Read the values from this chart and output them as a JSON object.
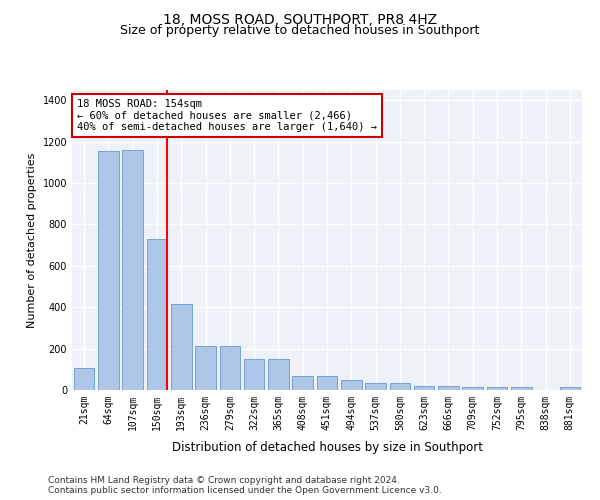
{
  "title": "18, MOSS ROAD, SOUTHPORT, PR8 4HZ",
  "subtitle": "Size of property relative to detached houses in Southport",
  "xlabel": "Distribution of detached houses by size in Southport",
  "ylabel": "Number of detached properties",
  "categories": [
    "21sqm",
    "64sqm",
    "107sqm",
    "150sqm",
    "193sqm",
    "236sqm",
    "279sqm",
    "322sqm",
    "365sqm",
    "408sqm",
    "451sqm",
    "494sqm",
    "537sqm",
    "580sqm",
    "623sqm",
    "666sqm",
    "709sqm",
    "752sqm",
    "795sqm",
    "838sqm",
    "881sqm"
  ],
  "values": [
    105,
    1155,
    1160,
    730,
    415,
    215,
    215,
    150,
    150,
    70,
    70,
    47,
    32,
    32,
    20,
    20,
    15,
    15,
    15,
    0,
    15
  ],
  "bar_color": "#aec6e8",
  "bar_edge_color": "#6699cc",
  "red_line_index": 3,
  "annotation_text": "18 MOSS ROAD: 154sqm\n← 60% of detached houses are smaller (2,466)\n40% of semi-detached houses are larger (1,640) →",
  "annotation_box_color": "#ffffff",
  "annotation_box_edge_color": "#cc0000",
  "ylim": [
    0,
    1450
  ],
  "yticks": [
    0,
    200,
    400,
    600,
    800,
    1000,
    1200,
    1400
  ],
  "footer1": "Contains HM Land Registry data © Crown copyright and database right 2024.",
  "footer2": "Contains public sector information licensed under the Open Government Licence v3.0.",
  "bg_color": "#eef2f8",
  "grid_color": "#ffffff",
  "fig_bg_color": "#ffffff",
  "title_fontsize": 10,
  "subtitle_fontsize": 9,
  "tick_fontsize": 7,
  "ylabel_fontsize": 8,
  "xlabel_fontsize": 8.5,
  "annotation_fontsize": 7.5,
  "footer_fontsize": 6.5
}
